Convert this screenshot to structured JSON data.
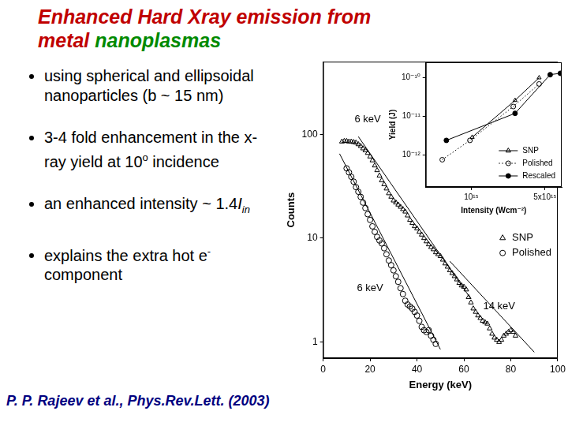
{
  "slide": {
    "title_lines": [
      [
        {
          "text": "Enhanced Hard Xray emission from",
          "color": "#c00000"
        }
      ],
      [
        {
          "text": "metal",
          "color": "#c00000"
        },
        {
          "text": "nanoplasmas",
          "color": "#008a00"
        }
      ]
    ],
    "bullets": [
      [
        {
          "text": "using spherical and ellipsoidal nanoparticles (b ~ 15 nm)"
        }
      ],
      [
        {
          "text": "3-4 fold enhancement in the x-ray yield at 10"
        },
        {
          "text": "o",
          "style": "sup"
        },
        {
          "text": " incidence"
        }
      ],
      [
        {
          "text": "an enhanced intensity ~ 1.4"
        },
        {
          "text": "I",
          "style": "italic"
        },
        {
          "text": "in",
          "style": "sub"
        }
      ],
      [
        {
          "text": "explains the extra hot e"
        },
        {
          "text": "-",
          "style": "sup"
        },
        {
          "text": " component"
        }
      ]
    ],
    "citation": "P. P. Rajeev et al., Phys.Rev.Lett. (2003)"
  },
  "chart_data": [
    {
      "type": "scatter",
      "x_label": "Energy (keV)",
      "y_label": "Counts",
      "log": "y",
      "xlim": [
        0,
        100
      ],
      "xticks": [
        0,
        20,
        40,
        60,
        80,
        100
      ],
      "ylim": [
        0.7,
        500
      ],
      "yticks": [
        1,
        10,
        100
      ],
      "grid": false,
      "legend": "right",
      "series": [
        {
          "name": "SNP",
          "marker": "open_triangle",
          "line_style": "none",
          "color": "#000000",
          "x": [
            8,
            9,
            10,
            11,
            12,
            13,
            14,
            15,
            16,
            17,
            18,
            19,
            20,
            21,
            22,
            23,
            24,
            25,
            26,
            27,
            28,
            29,
            30,
            31,
            32,
            33,
            34,
            35,
            36,
            37,
            38,
            39,
            40,
            41,
            42,
            43,
            44,
            45,
            46,
            47,
            48,
            49,
            50,
            51,
            52,
            53,
            54,
            55,
            56,
            57,
            58,
            59,
            60,
            61,
            62,
            63,
            64,
            65,
            66,
            67,
            68,
            69,
            70,
            71,
            72,
            73,
            74,
            75,
            76,
            77,
            78,
            79,
            80,
            81,
            82
          ],
          "values": [
            85,
            86,
            86,
            85,
            85,
            84,
            83,
            80,
            77,
            73,
            70,
            66,
            61,
            56,
            50,
            45,
            40,
            36,
            33,
            30,
            27,
            25,
            23,
            22,
            21,
            20,
            19,
            18,
            16.5,
            15,
            14,
            13,
            12.4,
            11.5,
            10.8,
            10,
            9.3,
            8.7,
            8.2,
            7.8,
            7.3,
            7,
            6.7,
            6.2,
            5.7,
            5.3,
            4.9,
            4.6,
            4.3,
            4,
            3.7,
            3.5,
            3.4,
            3.2,
            2.7,
            2.4,
            2.1,
            1.95,
            1.8,
            1.7,
            1.6,
            1.55,
            1.5,
            1.35,
            1.2,
            1.1,
            1.05,
            1,
            1.05,
            1.15,
            1.2,
            1.25,
            1.3,
            1.25,
            1.15
          ]
        },
        {
          "name": "Polished",
          "marker": "open_circle",
          "line_style": "none",
          "color": "#000000",
          "x": [
            10,
            11,
            12,
            13,
            14,
            15,
            16,
            17,
            18,
            19,
            20,
            21,
            22,
            23,
            24,
            25,
            26,
            27,
            28,
            29,
            30,
            31,
            32,
            33,
            34,
            35,
            36,
            37,
            38,
            39,
            40,
            41,
            42,
            43,
            44,
            45,
            46,
            47,
            48
          ],
          "values": [
            47,
            43,
            39,
            35,
            31,
            28,
            25,
            22,
            19.5,
            17,
            15,
            13,
            11.5,
            10.3,
            9.5,
            8.9,
            8,
            7,
            6.1,
            5.5,
            4.9,
            4.3,
            3.8,
            3.3,
            2.9,
            2.5,
            2.3,
            2.2,
            2.1,
            1.95,
            1.8,
            1.6,
            1.4,
            1.3,
            1.25,
            1.3,
            1.15,
            1.05,
            0.96
          ]
        }
      ],
      "fits": [
        {
          "x": [
            15,
            63
          ],
          "values": [
            95,
            2.6
          ],
          "color": "#000000",
          "line_style": "solid"
        },
        {
          "x": [
            54,
            90
          ],
          "values": [
            6,
            0.8
          ],
          "color": "#000000",
          "line_style": "solid"
        },
        {
          "x": [
            7,
            50
          ],
          "values": [
            65,
            0.85
          ],
          "color": "#000000",
          "line_style": "solid"
        }
      ],
      "annotations": [
        {
          "text": "6 keV",
          "x": 19,
          "y": 140
        },
        {
          "text": "6 keV",
          "x": 20,
          "y": 3.3
        },
        {
          "text": "14 keV",
          "x": 75,
          "y": 2.2
        }
      ]
    },
    {
      "type": "scatter",
      "x_label": "Intensity (Wcm⁻²)",
      "y_label": "Yield (J)",
      "log": true,
      "xlim": [
        370000000000000.0,
        7200000000000000.0
      ],
      "xticks": [
        {
          "value": 1000000000000000.0,
          "label": "10¹⁵"
        },
        {
          "value": 5000000000000000.0,
          "label": "5x10¹⁵"
        }
      ],
      "ylim": [
        1.5e-13,
        2.5e-10
      ],
      "yticks": [
        {
          "value": 1e-12,
          "label": "10⁻¹²"
        },
        {
          "value": 1e-11,
          "label": "10⁻¹¹"
        },
        {
          "value": 1e-10,
          "label": "10⁻¹⁰"
        }
      ],
      "grid": false,
      "legend": "lower right",
      "series": [
        {
          "name": "SNP",
          "marker": "open_triangle",
          "line_style": "solid",
          "color": "#000000",
          "x": [
            1020000000000000.0,
            2600000000000000.0,
            4400000000000000.0
          ],
          "values": [
            2.9e-12,
            2.6e-11,
            1e-10
          ]
        },
        {
          "name": "Polished",
          "marker": "open_circle",
          "line_style": "dotted",
          "color": "#000000",
          "x": [
            530000000000000.0,
            970000000000000.0,
            2500000000000000.0,
            4400000000000000.0
          ],
          "values": [
            7.6e-13,
            2.4e-12,
            1.8e-11,
            6.9e-11
          ]
        },
        {
          "name": "Rescaled",
          "marker": "filled_circle",
          "line_style": "solid",
          "color": "#000000",
          "x": [
            580000000000000.0,
            2600000000000000.0,
            5600000000000000.0,
            7000000000000000.0
          ],
          "values": [
            2.4e-12,
            1.2e-11,
            1.2e-10,
            1.3e-10
          ]
        }
      ]
    }
  ]
}
